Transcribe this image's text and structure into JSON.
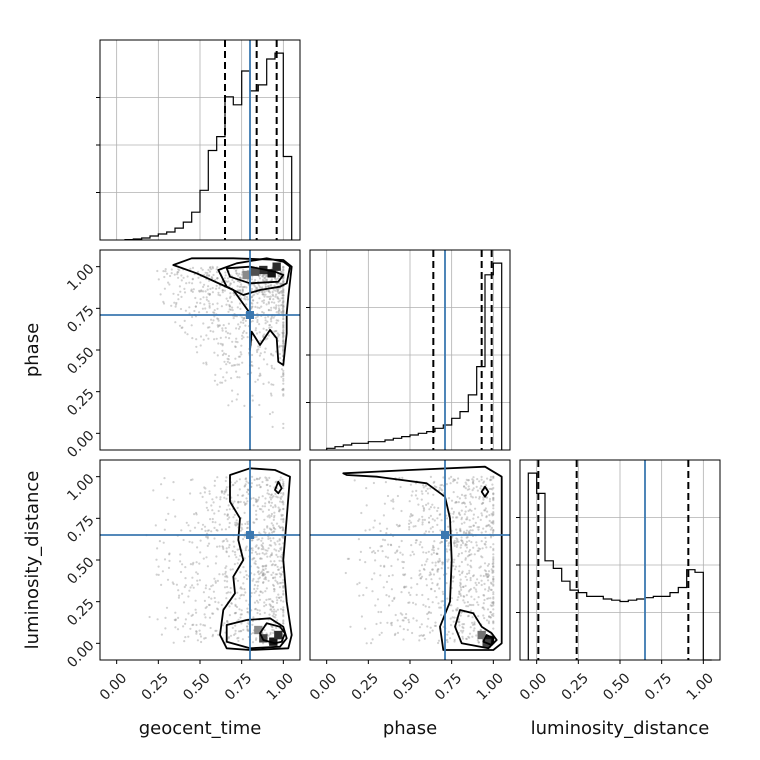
{
  "chart_data": {
    "type": "corner",
    "parameters": [
      "geocent_time",
      "phase",
      "luminosity_distance"
    ],
    "tick_values": [
      0.0,
      0.25,
      0.5,
      0.75,
      1.0
    ],
    "tick_labels": [
      "0.00",
      "0.25",
      "0.50",
      "0.75",
      "1.00"
    ],
    "xlim": [
      -0.1,
      1.1
    ],
    "truths": {
      "geocent_time": 0.8,
      "phase": 0.71,
      "luminosity_distance": 0.65
    },
    "marginals": [
      {
        "parameter": "geocent_time",
        "quantiles": [
          0.65,
          0.84,
          0.96
        ],
        "bin_edges": [
          0.05,
          0.1,
          0.15,
          0.2,
          0.25,
          0.3,
          0.35,
          0.4,
          0.45,
          0.5,
          0.55,
          0.6,
          0.65,
          0.7,
          0.75,
          0.8,
          0.85,
          0.9,
          0.95,
          1.0,
          1.05
        ],
        "counts": [
          0.2,
          0.5,
          1,
          2,
          3,
          4,
          6,
          9,
          14,
          25,
          45,
          52,
          72,
          68,
          85,
          75,
          78,
          91,
          94,
          42
        ]
      },
      {
        "parameter": "phase",
        "quantiles": [
          0.64,
          0.93,
          0.99
        ],
        "bin_edges": [
          0.0,
          0.05,
          0.1,
          0.15,
          0.2,
          0.25,
          0.3,
          0.35,
          0.4,
          0.45,
          0.5,
          0.55,
          0.6,
          0.65,
          0.7,
          0.75,
          0.8,
          0.85,
          0.9,
          0.95,
          1.0,
          1.05
        ],
        "counts": [
          1,
          2,
          3,
          4,
          4,
          5,
          5,
          6,
          7,
          8,
          9,
          10,
          11,
          13,
          15,
          19,
          23,
          33,
          50,
          105,
          112
        ]
      },
      {
        "parameter": "luminosity_distance",
        "quantiles": [
          0.01,
          0.24,
          0.91
        ],
        "bin_edges": [
          -0.05,
          0.0,
          0.05,
          0.1,
          0.15,
          0.2,
          0.25,
          0.3,
          0.35,
          0.4,
          0.45,
          0.5,
          0.55,
          0.6,
          0.65,
          0.7,
          0.75,
          0.8,
          0.85,
          0.9,
          0.95,
          1.0,
          1.05
        ],
        "counts": [
          147,
          131,
          78,
          72,
          62,
          55,
          53,
          50,
          50,
          48,
          47,
          46,
          47,
          48,
          49,
          50,
          50,
          53,
          57,
          71,
          69,
          0
        ]
      }
    ],
    "joint": [
      {
        "x": "geocent_time",
        "y": "phase",
        "truth": [
          0.8,
          0.71
        ],
        "contour_levels": [
          [
            [
              0.66,
              0.99
            ],
            [
              0.8,
              1.0
            ],
            [
              0.95,
              0.97
            ],
            [
              1.0,
              0.95
            ],
            [
              0.97,
              0.91
            ],
            [
              0.8,
              0.9
            ],
            [
              0.68,
              0.94
            ],
            [
              0.66,
              0.99
            ]
          ],
          [
            [
              0.61,
              0.98
            ],
            [
              0.72,
              1.02
            ],
            [
              0.9,
              1.05
            ],
            [
              1.0,
              1.03
            ],
            [
              1.04,
              1.0
            ],
            [
              1.02,
              0.9
            ],
            [
              0.98,
              0.88
            ],
            [
              0.86,
              0.86
            ],
            [
              0.76,
              0.83
            ],
            [
              0.66,
              0.88
            ],
            [
              0.61,
              0.98
            ]
          ],
          [
            [
              0.34,
              1.01
            ],
            [
              0.45,
              1.05
            ],
            [
              0.7,
              1.05
            ],
            [
              1.0,
              1.04
            ],
            [
              1.05,
              1.0
            ],
            [
              1.03,
              0.82
            ],
            [
              1.02,
              0.72
            ],
            [
              1.02,
              0.6
            ],
            [
              1.0,
              0.41
            ],
            [
              0.97,
              0.43
            ],
            [
              0.96,
              0.57
            ],
            [
              0.92,
              0.62
            ],
            [
              0.86,
              0.53
            ],
            [
              0.81,
              0.61
            ],
            [
              0.8,
              0.5
            ],
            [
              0.8,
              0.72
            ],
            [
              0.7,
              0.86
            ],
            [
              0.48,
              0.96
            ],
            [
              0.34,
              1.01
            ]
          ]
        ]
      },
      {
        "x": "geocent_time",
        "y": "luminosity_distance",
        "truth": [
          0.8,
          0.65
        ],
        "contour_levels": [
          [
            [
              0.88,
              0.02
            ],
            [
              0.86,
              0.06
            ],
            [
              0.9,
              0.12
            ],
            [
              0.98,
              0.1
            ],
            [
              1.01,
              0.06
            ],
            [
              0.99,
              0.01
            ],
            [
              0.95,
              0.0
            ],
            [
              0.88,
              0.02
            ]
          ],
          [
            [
              0.66,
              0.01
            ],
            [
              0.66,
              0.11
            ],
            [
              0.78,
              0.14
            ],
            [
              0.92,
              0.15
            ],
            [
              1.0,
              0.1
            ],
            [
              1.02,
              0.03
            ],
            [
              0.98,
              -0.02
            ],
            [
              0.8,
              -0.03
            ],
            [
              0.66,
              0.01
            ]
          ],
          [
            [
              0.68,
              1.01
            ],
            [
              0.8,
              1.05
            ],
            [
              0.95,
              1.04
            ],
            [
              1.04,
              1.0
            ],
            [
              1.02,
              0.75
            ],
            [
              1.0,
              0.5
            ],
            [
              1.02,
              0.25
            ],
            [
              1.05,
              0.05
            ],
            [
              1.03,
              -0.03
            ],
            [
              0.8,
              -0.04
            ],
            [
              0.66,
              -0.03
            ],
            [
              0.62,
              0.05
            ],
            [
              0.64,
              0.2
            ],
            [
              0.71,
              0.3
            ],
            [
              0.7,
              0.4
            ],
            [
              0.76,
              0.5
            ],
            [
              0.73,
              0.62
            ],
            [
              0.74,
              0.75
            ],
            [
              0.68,
              0.85
            ],
            [
              0.68,
              1.01
            ]
          ],
          [
            [
              0.95,
              0.92
            ],
            [
              0.97,
              0.97
            ],
            [
              0.99,
              0.93
            ],
            [
              0.97,
              0.9
            ],
            [
              0.95,
              0.92
            ]
          ]
        ]
      },
      {
        "x": "phase",
        "y": "luminosity_distance",
        "truth": [
          0.71,
          0.65
        ],
        "contour_levels": [
          [
            [
              0.94,
              0.01
            ],
            [
              0.96,
              0.05
            ],
            [
              1.0,
              0.03
            ],
            [
              0.99,
              -0.01
            ],
            [
              0.94,
              0.01
            ]
          ],
          [
            [
              0.81,
              0.0
            ],
            [
              0.77,
              0.1
            ],
            [
              0.8,
              0.2
            ],
            [
              0.88,
              0.18
            ],
            [
              0.93,
              0.1
            ],
            [
              0.99,
              0.06
            ],
            [
              1.02,
              0.02
            ],
            [
              0.97,
              -0.03
            ],
            [
              0.81,
              0.0
            ]
          ],
          [
            [
              0.1,
              1.02
            ],
            [
              0.5,
              1.04
            ],
            [
              0.95,
              1.06
            ],
            [
              1.05,
              1.0
            ],
            [
              1.05,
              0.0
            ],
            [
              1.0,
              -0.04
            ],
            [
              0.7,
              -0.04
            ],
            [
              0.68,
              0.1
            ],
            [
              0.74,
              0.25
            ],
            [
              0.75,
              0.5
            ],
            [
              0.74,
              0.75
            ],
            [
              0.71,
              0.88
            ],
            [
              0.6,
              0.96
            ],
            [
              0.3,
              1.0
            ],
            [
              0.12,
              1.01
            ],
            [
              0.1,
              1.02
            ]
          ],
          [
            [
              0.93,
              0.91
            ],
            [
              0.95,
              0.94
            ],
            [
              0.97,
              0.91
            ],
            [
              0.95,
              0.88
            ],
            [
              0.93,
              0.91
            ]
          ]
        ]
      }
    ]
  }
}
